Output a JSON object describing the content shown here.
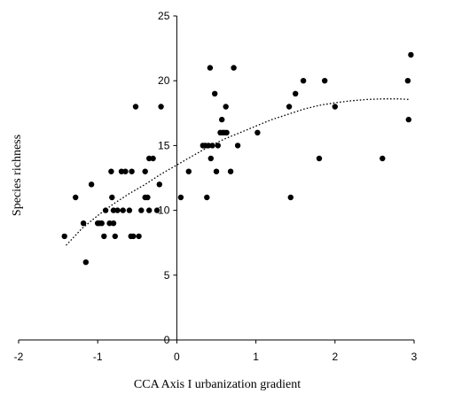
{
  "chart_data": {
    "type": "scatter",
    "title": "",
    "xlabel": "CCA Axis I urbanization gradient",
    "ylabel": "Species richness",
    "xlim": [
      -2,
      3
    ],
    "ylim": [
      0,
      25
    ],
    "xticks": [
      "-2",
      "-1",
      "0",
      "1",
      "2",
      "3"
    ],
    "yticks": [
      "0",
      "5",
      "10",
      "15",
      "20",
      "25"
    ],
    "grid": false,
    "legend": "none",
    "trendline": {
      "style": "dotted",
      "x": [
        -1.4,
        -1.2,
        -1.0,
        -0.8,
        -0.6,
        -0.4,
        -0.2,
        0.0,
        0.2,
        0.4,
        0.6,
        0.8,
        1.0,
        1.2,
        1.4,
        1.6,
        1.8,
        2.0,
        2.2,
        2.4,
        2.6,
        2.8,
        2.95
      ],
      "y": [
        7.3,
        8.6,
        9.6,
        10.5,
        11.3,
        12.0,
        12.8,
        13.5,
        14.2,
        14.9,
        15.5,
        16.0,
        16.5,
        17.0,
        17.4,
        17.8,
        18.1,
        18.3,
        18.45,
        18.55,
        18.6,
        18.6,
        18.55
      ]
    },
    "points": [
      {
        "x": -1.42,
        "y": 8
      },
      {
        "x": -1.28,
        "y": 11
      },
      {
        "x": -1.18,
        "y": 9
      },
      {
        "x": -1.15,
        "y": 6
      },
      {
        "x": -1.08,
        "y": 12
      },
      {
        "x": -1.0,
        "y": 9
      },
      {
        "x": -0.98,
        "y": 9
      },
      {
        "x": -0.95,
        "y": 9
      },
      {
        "x": -0.92,
        "y": 8
      },
      {
        "x": -0.9,
        "y": 10
      },
      {
        "x": -0.85,
        "y": 9
      },
      {
        "x": -0.83,
        "y": 13
      },
      {
        "x": -0.82,
        "y": 11
      },
      {
        "x": -0.8,
        "y": 9
      },
      {
        "x": -0.8,
        "y": 10
      },
      {
        "x": -0.78,
        "y": 8
      },
      {
        "x": -0.75,
        "y": 10
      },
      {
        "x": -0.7,
        "y": 13
      },
      {
        "x": -0.68,
        "y": 10
      },
      {
        "x": -0.65,
        "y": 13
      },
      {
        "x": -0.6,
        "y": 10
      },
      {
        "x": -0.58,
        "y": 8
      },
      {
        "x": -0.57,
        "y": 13
      },
      {
        "x": -0.55,
        "y": 8
      },
      {
        "x": -0.52,
        "y": 18
      },
      {
        "x": -0.48,
        "y": 8
      },
      {
        "x": -0.45,
        "y": 10
      },
      {
        "x": -0.4,
        "y": 13
      },
      {
        "x": -0.4,
        "y": 11
      },
      {
        "x": -0.37,
        "y": 11
      },
      {
        "x": -0.35,
        "y": 14
      },
      {
        "x": -0.35,
        "y": 10
      },
      {
        "x": -0.3,
        "y": 14
      },
      {
        "x": -0.25,
        "y": 10
      },
      {
        "x": -0.22,
        "y": 12
      },
      {
        "x": -0.2,
        "y": 18
      },
      {
        "x": 0.05,
        "y": 11
      },
      {
        "x": 0.15,
        "y": 13
      },
      {
        "x": 0.33,
        "y": 15
      },
      {
        "x": 0.36,
        "y": 15
      },
      {
        "x": 0.38,
        "y": 11
      },
      {
        "x": 0.4,
        "y": 15
      },
      {
        "x": 0.42,
        "y": 21
      },
      {
        "x": 0.43,
        "y": 14
      },
      {
        "x": 0.45,
        "y": 15
      },
      {
        "x": 0.48,
        "y": 19
      },
      {
        "x": 0.5,
        "y": 13
      },
      {
        "x": 0.52,
        "y": 15
      },
      {
        "x": 0.55,
        "y": 16
      },
      {
        "x": 0.57,
        "y": 17
      },
      {
        "x": 0.58,
        "y": 16
      },
      {
        "x": 0.6,
        "y": 16
      },
      {
        "x": 0.62,
        "y": 18
      },
      {
        "x": 0.63,
        "y": 16
      },
      {
        "x": 0.68,
        "y": 13
      },
      {
        "x": 0.72,
        "y": 21
      },
      {
        "x": 0.77,
        "y": 15
      },
      {
        "x": 1.02,
        "y": 16
      },
      {
        "x": 1.42,
        "y": 18
      },
      {
        "x": 1.44,
        "y": 11
      },
      {
        "x": 1.5,
        "y": 19
      },
      {
        "x": 1.6,
        "y": 20
      },
      {
        "x": 1.8,
        "y": 14
      },
      {
        "x": 1.87,
        "y": 20
      },
      {
        "x": 2.0,
        "y": 18
      },
      {
        "x": 2.6,
        "y": 14
      },
      {
        "x": 2.92,
        "y": 20
      },
      {
        "x": 2.93,
        "y": 17
      },
      {
        "x": 2.96,
        "y": 22
      }
    ]
  }
}
